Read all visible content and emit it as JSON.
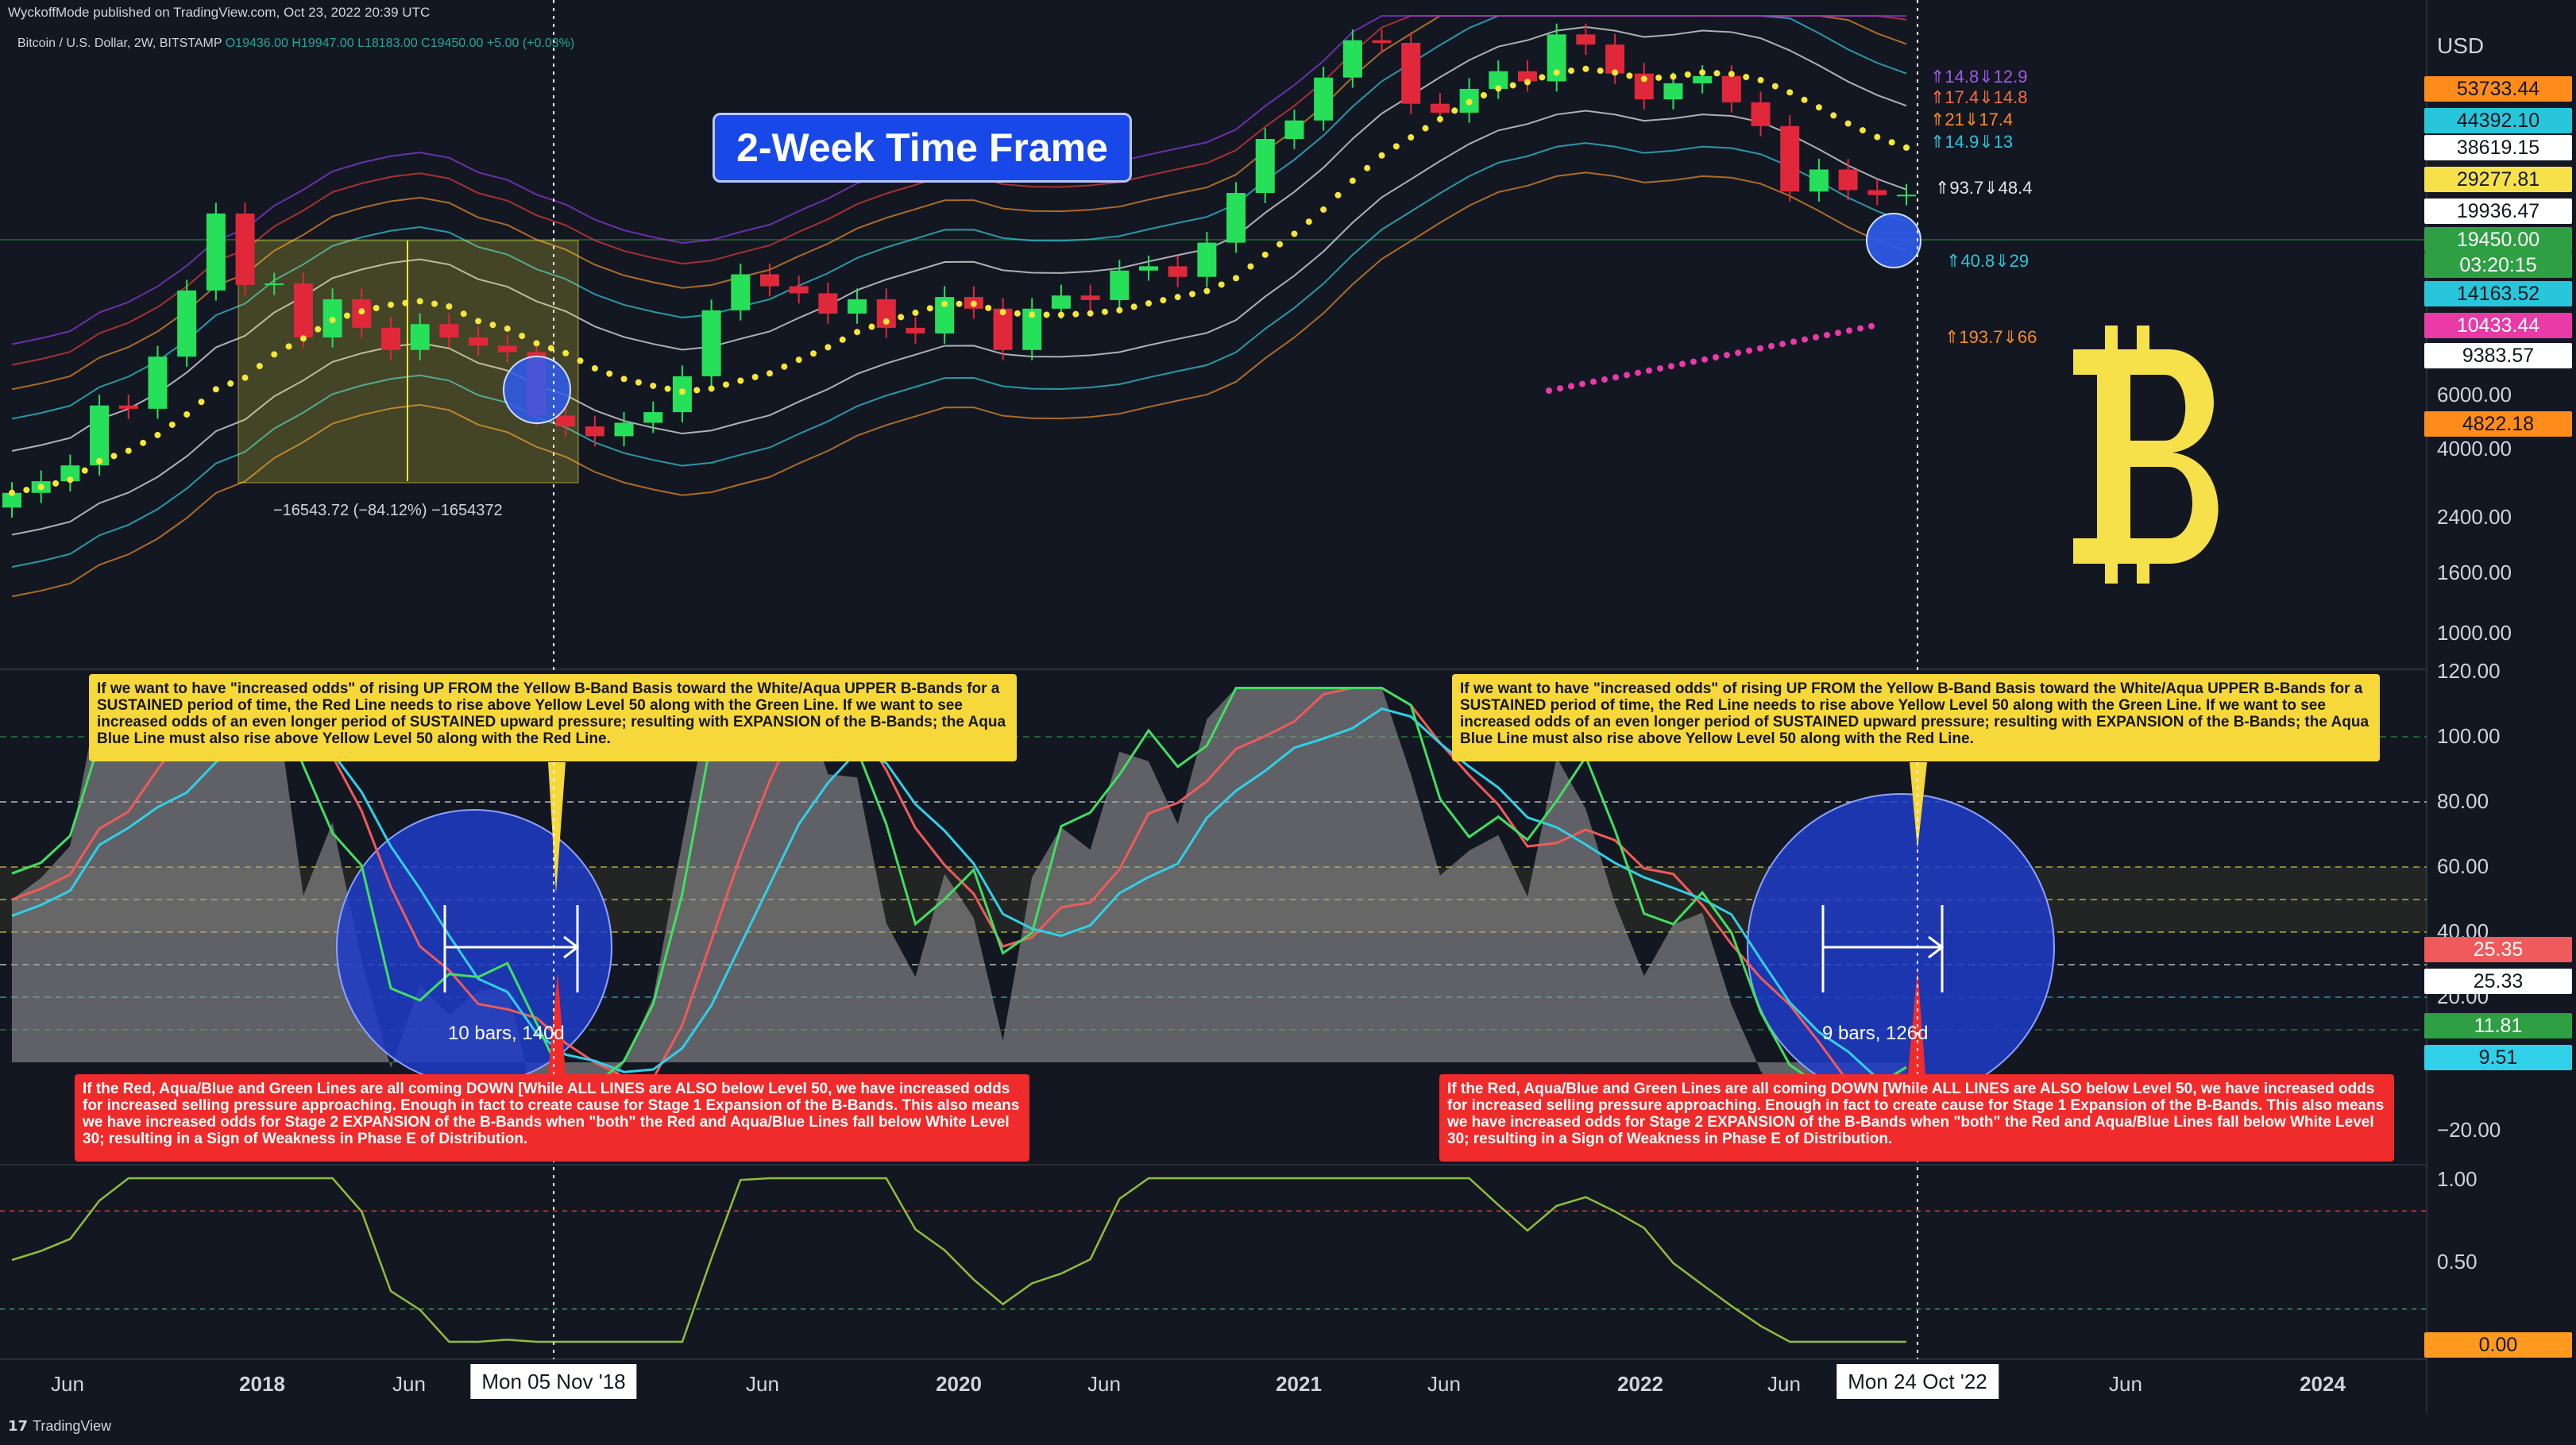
{
  "header": {
    "published": "WyckoffMode published on TradingView.com, Oct 23, 2022 20:39 UTC",
    "symbol": "Bitcoin / U.S. Dollar, 2W, BITSTAMP",
    "ohlc": "O19436.00 H19947.00 L18183.00 C19450.00 +5.00 (+0.03%)"
  },
  "title_box": "2-Week Time Frame",
  "footer_brand": "TradingView",
  "colors": {
    "background": "#131722",
    "candle_up": "#26e05a",
    "candle_down": "#e0283a",
    "basis_dots": "#f5e63a",
    "magenta_dots": "#e93aa8",
    "white_band": "#e6e6e6",
    "aqua_band": "#2fc6d6",
    "orange_band": "#e0892a",
    "purple_band": "#8a3ad6",
    "red_band": "#d93a3a",
    "bitcoin_logo": "#f7e14a",
    "highlight_circle": "#1f3cc9",
    "red_line": "#f05a5a",
    "aqua_line": "#30d0e8",
    "green_line": "#40e060",
    "gray_area": "#9e9e9e"
  },
  "icons": {
    "bitcoin": "bitcoin-logo-icon",
    "tradingview": "tradingview-logo-icon"
  },
  "price_axis": {
    "currency": "USD",
    "scale": "log",
    "tick_labels": [
      "6000.00",
      "4000.00",
      "2400.00",
      "1600.00",
      "1000.00"
    ],
    "highlight_labels": [
      {
        "text": "53733.44",
        "bg": "#ff8c1a",
        "fg": "#131722"
      },
      {
        "text": "44392.10",
        "bg": "#27c6da",
        "fg": "#131722"
      },
      {
        "text": "38619.15",
        "bg": "#ffffff",
        "fg": "#131722"
      },
      {
        "text": "29277.81",
        "bg": "#f7e14a",
        "fg": "#131722"
      },
      {
        "text": "19936.47",
        "bg": "#ffffff",
        "fg": "#131722"
      },
      {
        "text": "19450.00",
        "bg": "#2ea043",
        "fg": "#ffffff"
      },
      {
        "text": "03:20:15",
        "bg": "#2ea043",
        "fg": "#ffffff"
      },
      {
        "text": "14163.52",
        "bg": "#27c6da",
        "fg": "#131722"
      },
      {
        "text": "10433.44",
        "bg": "#e93aa8",
        "fg": "#ffffff"
      },
      {
        "text": "9383.57",
        "bg": "#ffffff",
        "fg": "#131722"
      },
      {
        "text": "4822.18",
        "bg": "#ff8c1a",
        "fg": "#131722"
      }
    ],
    "ratios": [
      {
        "text": "⇑14.8⇓12.9",
        "color": "#a05ae6"
      },
      {
        "text": "⇑17.4⇓14.8",
        "color": "#ff6a3a"
      },
      {
        "text": "⇑21⇓17.4",
        "color": "#ff8c1a"
      },
      {
        "text": "⇑14.9⇓13",
        "color": "#27c6da"
      },
      {
        "text": "⇑93.7⇓48.4",
        "color": "#e6e6e6"
      },
      {
        "text": "⇑40.8⇓29",
        "color": "#27c6da"
      },
      {
        "text": "⇑193.7⇓66",
        "color": "#ff8c1a"
      }
    ]
  },
  "measure_label": "−16543.72 (−84.12%) −1654372",
  "oscillator": {
    "axis_labels": [
      "120.00",
      "100.00",
      "80.00",
      "60.00",
      "40.00",
      "20.00",
      "−20.00"
    ],
    "values": [
      {
        "text": "25.35",
        "bg": "#f05a5a",
        "fg": "#ffffff"
      },
      {
        "text": "25.33",
        "bg": "#ffffff",
        "fg": "#131722"
      },
      {
        "text": "11.81",
        "bg": "#2ea043",
        "fg": "#ffffff"
      },
      {
        "text": "9.51",
        "bg": "#30d0e8",
        "fg": "#131722"
      }
    ],
    "bars_labels": [
      "10 bars, 140d",
      "9 bars, 126d"
    ]
  },
  "third_pane": {
    "axis_labels": [
      "1.00",
      "0.50"
    ],
    "value": "0.00"
  },
  "notes": {
    "yellow_note": "If we want to have \"increased odds\" of rising UP FROM the Yellow B-Band Basis toward the White/Aqua UPPER B-Bands for a SUSTAINED period of time, the Red Line needs to rise above Yellow Level 50 along with the Green Line.  If we want to see increased odds of an even longer period of SUSTAINED upward pressure; resulting with EXPANSION of the B-Bands; the Aqua Blue Line must also rise above Yellow Level 50 along with the Red Line.",
    "red_note": "If the Red, Aqua/Blue and Green Lines are all coming DOWN [While ALL LINES are ALSO below Level 50, we have increased odds for increased selling pressure approaching.  Enough in fact to create cause for Stage 1 Expansion of the B-Bands.  This also means we have increased odds for Stage 2 EXPANSION of the B-Bands when \"both\" the Red and Aqua/Blue Lines fall below White Level 30; resulting in a Sign of Weakness in Phase E of Distribution."
  },
  "time_axis": {
    "labels": [
      {
        "text": "Jun",
        "bold": false
      },
      {
        "text": "2018",
        "bold": true
      },
      {
        "text": "Jun",
        "bold": false
      },
      {
        "text": "Jun",
        "bold": false
      },
      {
        "text": "2020",
        "bold": true
      },
      {
        "text": "Jun",
        "bold": false
      },
      {
        "text": "2021",
        "bold": true
      },
      {
        "text": "Jun",
        "bold": false
      },
      {
        "text": "2022",
        "bold": true
      },
      {
        "text": "Jun",
        "bold": false
      },
      {
        "text": "Jun",
        "bold": false
      },
      {
        "text": "2024",
        "bold": true
      }
    ],
    "cursor_dates": [
      "Mon 05 Nov '18",
      "Mon 24 Oct '22"
    ]
  },
  "chart_data": {
    "type": "candlestick",
    "symbol": "Bitcoin / U.S. Dollar",
    "interval": "2W",
    "y_scale": "log",
    "ylim": [
      700,
      70000
    ],
    "x_range": [
      "2017-04",
      "2024-06"
    ],
    "candles": [
      {
        "date": "2017-05",
        "close": 2300
      },
      {
        "date": "2017-06",
        "close": 2500
      },
      {
        "date": "2017-07",
        "close": 2800
      },
      {
        "date": "2017-08",
        "close": 4300
      },
      {
        "date": "2017-09",
        "close": 4200
      },
      {
        "date": "2017-10",
        "close": 6100
      },
      {
        "date": "2017-11",
        "close": 9800
      },
      {
        "date": "2017-12",
        "close": 17000
      },
      {
        "date": "2018-01",
        "close": 10200
      },
      {
        "date": "2018-02",
        "close": 10300
      },
      {
        "date": "2018-03",
        "close": 7000
      },
      {
        "date": "2018-04",
        "close": 9200
      },
      {
        "date": "2018-05",
        "close": 7500
      },
      {
        "date": "2018-06",
        "close": 6400
      },
      {
        "date": "2018-07",
        "close": 7700
      },
      {
        "date": "2018-08",
        "close": 7000
      },
      {
        "date": "2018-09",
        "close": 6600
      },
      {
        "date": "2018-10",
        "close": 6300
      },
      {
        "date": "2018-11",
        "close": 4000
      },
      {
        "date": "2018-12",
        "close": 3700
      },
      {
        "date": "2019-01",
        "close": 3450
      },
      {
        "date": "2019-02",
        "close": 3800
      },
      {
        "date": "2019-03",
        "close": 4100
      },
      {
        "date": "2019-04",
        "close": 5300
      },
      {
        "date": "2019-05",
        "close": 8500
      },
      {
        "date": "2019-06",
        "close": 11000
      },
      {
        "date": "2019-07",
        "close": 10100
      },
      {
        "date": "2019-08",
        "close": 9600
      },
      {
        "date": "2019-09",
        "close": 8300
      },
      {
        "date": "2019-10",
        "close": 9200
      },
      {
        "date": "2019-11",
        "close": 7500
      },
      {
        "date": "2019-12",
        "close": 7200
      },
      {
        "date": "2020-01",
        "close": 9350
      },
      {
        "date": "2020-02",
        "close": 8600
      },
      {
        "date": "2020-03",
        "close": 6400
      },
      {
        "date": "2020-04",
        "close": 8600
      },
      {
        "date": "2020-05",
        "close": 9450
      },
      {
        "date": "2020-06",
        "close": 9150
      },
      {
        "date": "2020-07",
        "close": 11300
      },
      {
        "date": "2020-08",
        "close": 11650
      },
      {
        "date": "2020-09",
        "close": 10800
      },
      {
        "date": "2020-10",
        "close": 13800
      },
      {
        "date": "2020-11",
        "close": 19700
      },
      {
        "date": "2020-12",
        "close": 29000
      },
      {
        "date": "2021-01",
        "close": 33100
      },
      {
        "date": "2021-02",
        "close": 45000
      },
      {
        "date": "2021-03",
        "close": 58800
      },
      {
        "date": "2021-04",
        "close": 57700
      },
      {
        "date": "2021-05",
        "close": 37300
      },
      {
        "date": "2021-06",
        "close": 35000
      },
      {
        "date": "2021-07",
        "close": 41500
      },
      {
        "date": "2021-08",
        "close": 47100
      },
      {
        "date": "2021-09",
        "close": 43800
      },
      {
        "date": "2021-10",
        "close": 61300
      },
      {
        "date": "2021-11",
        "close": 57000
      },
      {
        "date": "2021-12",
        "close": 46300
      },
      {
        "date": "2022-01",
        "close": 38500
      },
      {
        "date": "2022-02",
        "close": 43200
      },
      {
        "date": "2022-03",
        "close": 45500
      },
      {
        "date": "2022-04",
        "close": 37700
      },
      {
        "date": "2022-05",
        "close": 31800
      },
      {
        "date": "2022-06",
        "close": 19900
      },
      {
        "date": "2022-07",
        "close": 23300
      },
      {
        "date": "2022-08",
        "close": 20100
      },
      {
        "date": "2022-09",
        "close": 19400
      },
      {
        "date": "2022-10",
        "close": 19450
      }
    ]
  }
}
